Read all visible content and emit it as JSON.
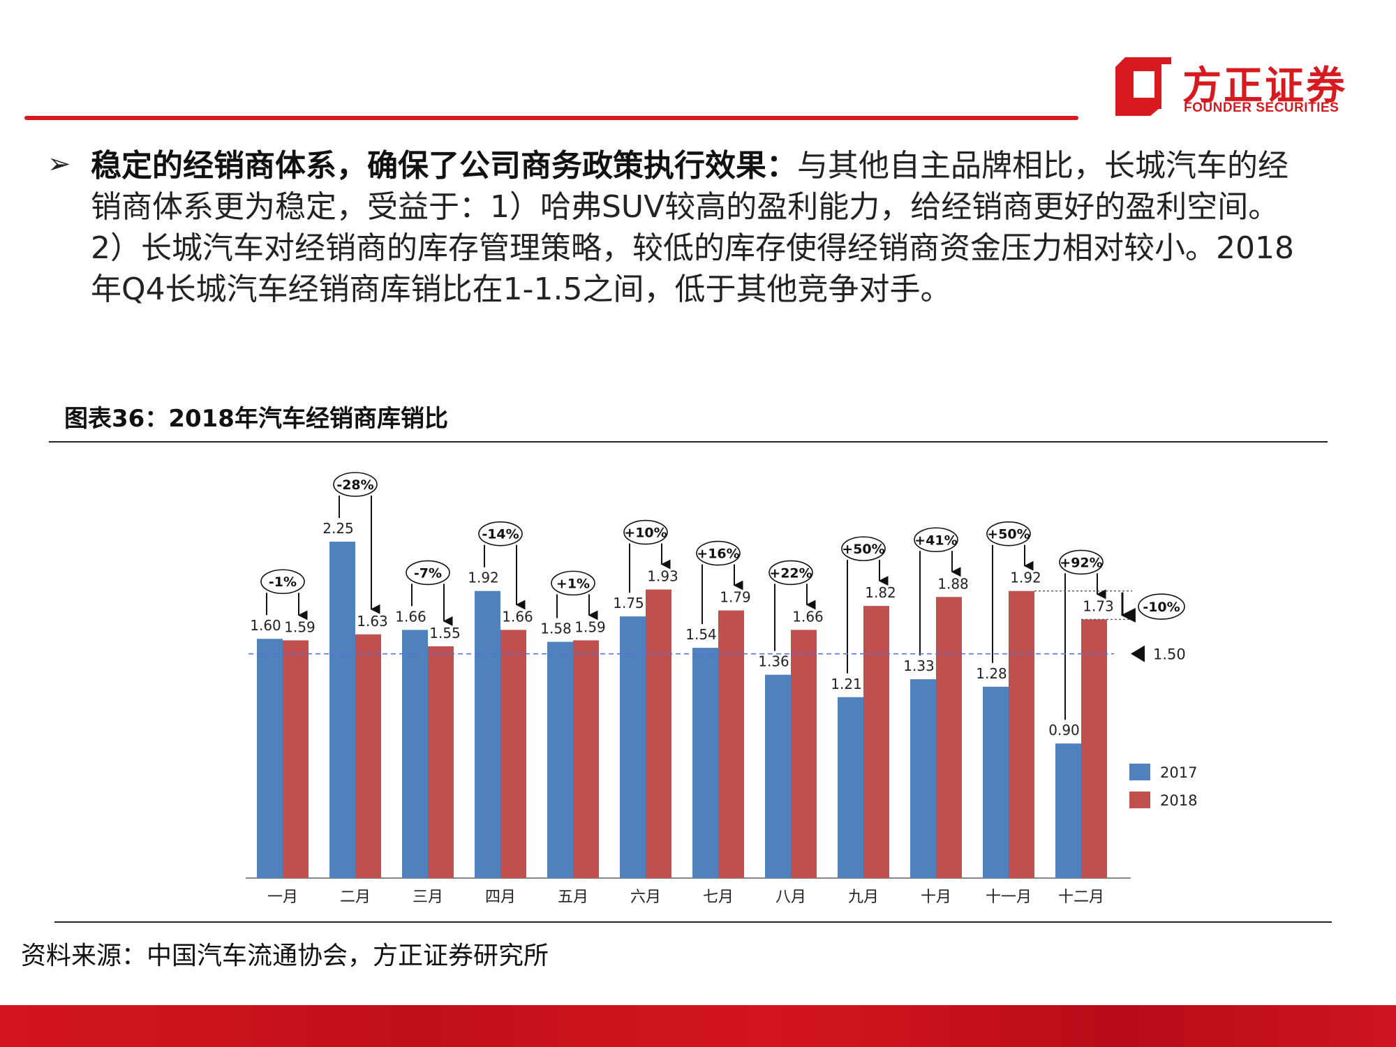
{
  "header": {
    "logo_cn": "方正证券",
    "logo_en": "FOUNDER SECURITIES",
    "brand_color": "#d71920"
  },
  "paragraph": {
    "bullet": "➢",
    "bold": "稳定的经销商体系，确保了公司商务政策执行效果：",
    "text": "与其他自主品牌相比，长城汽车的经销商体系更为稳定，受益于：1）哈弗SUV较高的盈利能力，给经销商更好的盈利空间。2）长城汽车对经销商的库存管理策略，较低的库存使得经销商资金压力相对较小。2018年Q4长城汽车经销商库销比在1-1.5之间，低于其他竞争对手。"
  },
  "figure": {
    "title": "图表36：2018年汽车经销商库销比",
    "source": "资料来源：中国汽车流通协会，方正证券研究所"
  },
  "chart_data": {
    "type": "bar",
    "title": "",
    "xlabel": "",
    "ylabel": "",
    "categories": [
      "一月",
      "二月",
      "三月",
      "四月",
      "五月",
      "六月",
      "七月",
      "八月",
      "九月",
      "十月",
      "十一月",
      "十二月"
    ],
    "series": [
      {
        "name": "2017",
        "color": "#4f81bd",
        "values": [
          1.6,
          2.25,
          1.66,
          1.92,
          1.58,
          1.75,
          1.54,
          1.36,
          1.21,
          1.33,
          1.28,
          0.9
        ]
      },
      {
        "name": "2018",
        "color": "#c0504d",
        "values": [
          1.59,
          1.63,
          1.55,
          1.66,
          1.59,
          1.93,
          1.79,
          1.66,
          1.82,
          1.88,
          1.92,
          1.73
        ]
      }
    ],
    "changes": [
      "-1%",
      "-28%",
      "-7%",
      "-14%",
      "+1%",
      "+10%",
      "+16%",
      "+22%",
      "+50%",
      "+41%",
      "+50%",
      "+92%"
    ],
    "reference_line": {
      "value": 1.5,
      "label": "1.50"
    },
    "extra_annotation": {
      "label": "-10%",
      "from": 1.92,
      "to": 1.73
    },
    "ylim": [
      0,
      2.25
    ],
    "grid": false,
    "legend_position": "bottom-right"
  }
}
